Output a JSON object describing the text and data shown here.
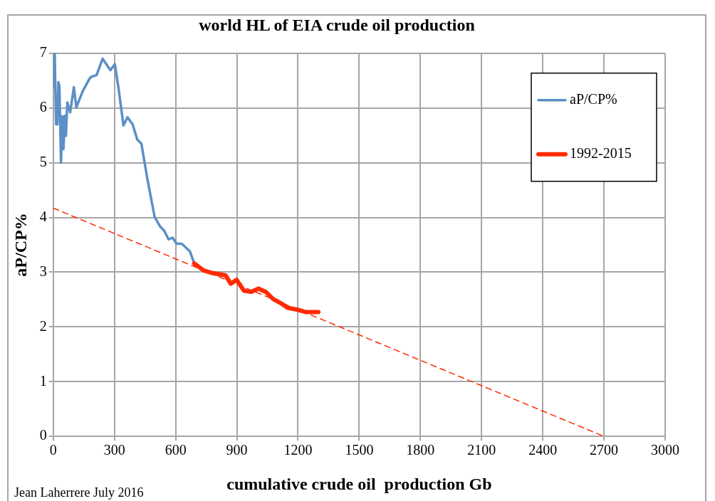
{
  "chart_data": {
    "type": "line",
    "title": "world HL of EIA crude oil production",
    "xlabel": "cumulative crude oil  production Gb",
    "ylabel": "aP/CP%",
    "annotations": [
      "Jean Laherrere July 2016"
    ],
    "xlim": [
      0,
      3000
    ],
    "xticks": [
      0,
      300,
      600,
      900,
      1200,
      1500,
      1800,
      2100,
      2400,
      2700,
      3000
    ],
    "ylim": [
      0,
      7
    ],
    "yticks": [
      0,
      1,
      2,
      3,
      4,
      5,
      6,
      7
    ],
    "grid": true,
    "legend": "top right",
    "marker": "none",
    "series": [
      {
        "name": "aP/CP%",
        "color": "#5b8fc7",
        "x": [
          2,
          4,
          7,
          10,
          14,
          20,
          25,
          30,
          38,
          45,
          50,
          57,
          62,
          69,
          83,
          101,
          113,
          133,
          145,
          177,
          186,
          212,
          242,
          280,
          302,
          320,
          344,
          364,
          389,
          412,
          432,
          462,
          497,
          523,
          545,
          565,
          585,
          605,
          630,
          670,
          691
        ],
        "values": [
          7.0,
          6.4,
          7.0,
          6.4,
          5.7,
          5.7,
          6.47,
          6.4,
          5.0,
          5.85,
          5.25,
          5.86,
          5.49,
          6.1,
          5.92,
          6.38,
          6.01,
          6.2,
          6.31,
          6.53,
          6.57,
          6.6,
          6.9,
          6.69,
          6.8,
          6.36,
          5.68,
          5.83,
          5.7,
          5.42,
          5.35,
          4.69,
          4.01,
          3.84,
          3.75,
          3.6,
          3.63,
          3.52,
          3.52,
          3.38,
          3.16
        ]
      },
      {
        "name": "1992-2015",
        "color": "#ff2a00",
        "x": [
          691,
          738,
          773,
          845,
          870,
          899,
          935,
          970,
          1006,
          1042,
          1078,
          1113,
          1149,
          1203,
          1239,
          1300
        ],
        "values": [
          3.16,
          3.03,
          2.99,
          2.94,
          2.79,
          2.86,
          2.66,
          2.64,
          2.7,
          2.64,
          2.51,
          2.44,
          2.35,
          2.31,
          2.27,
          2.27
        ]
      },
      {
        "type": "line",
        "color": "#ff2a00",
        "line_style": "dashed",
        "x": [
          0,
          2700
        ],
        "values": [
          4.17,
          0
        ]
      }
    ]
  }
}
